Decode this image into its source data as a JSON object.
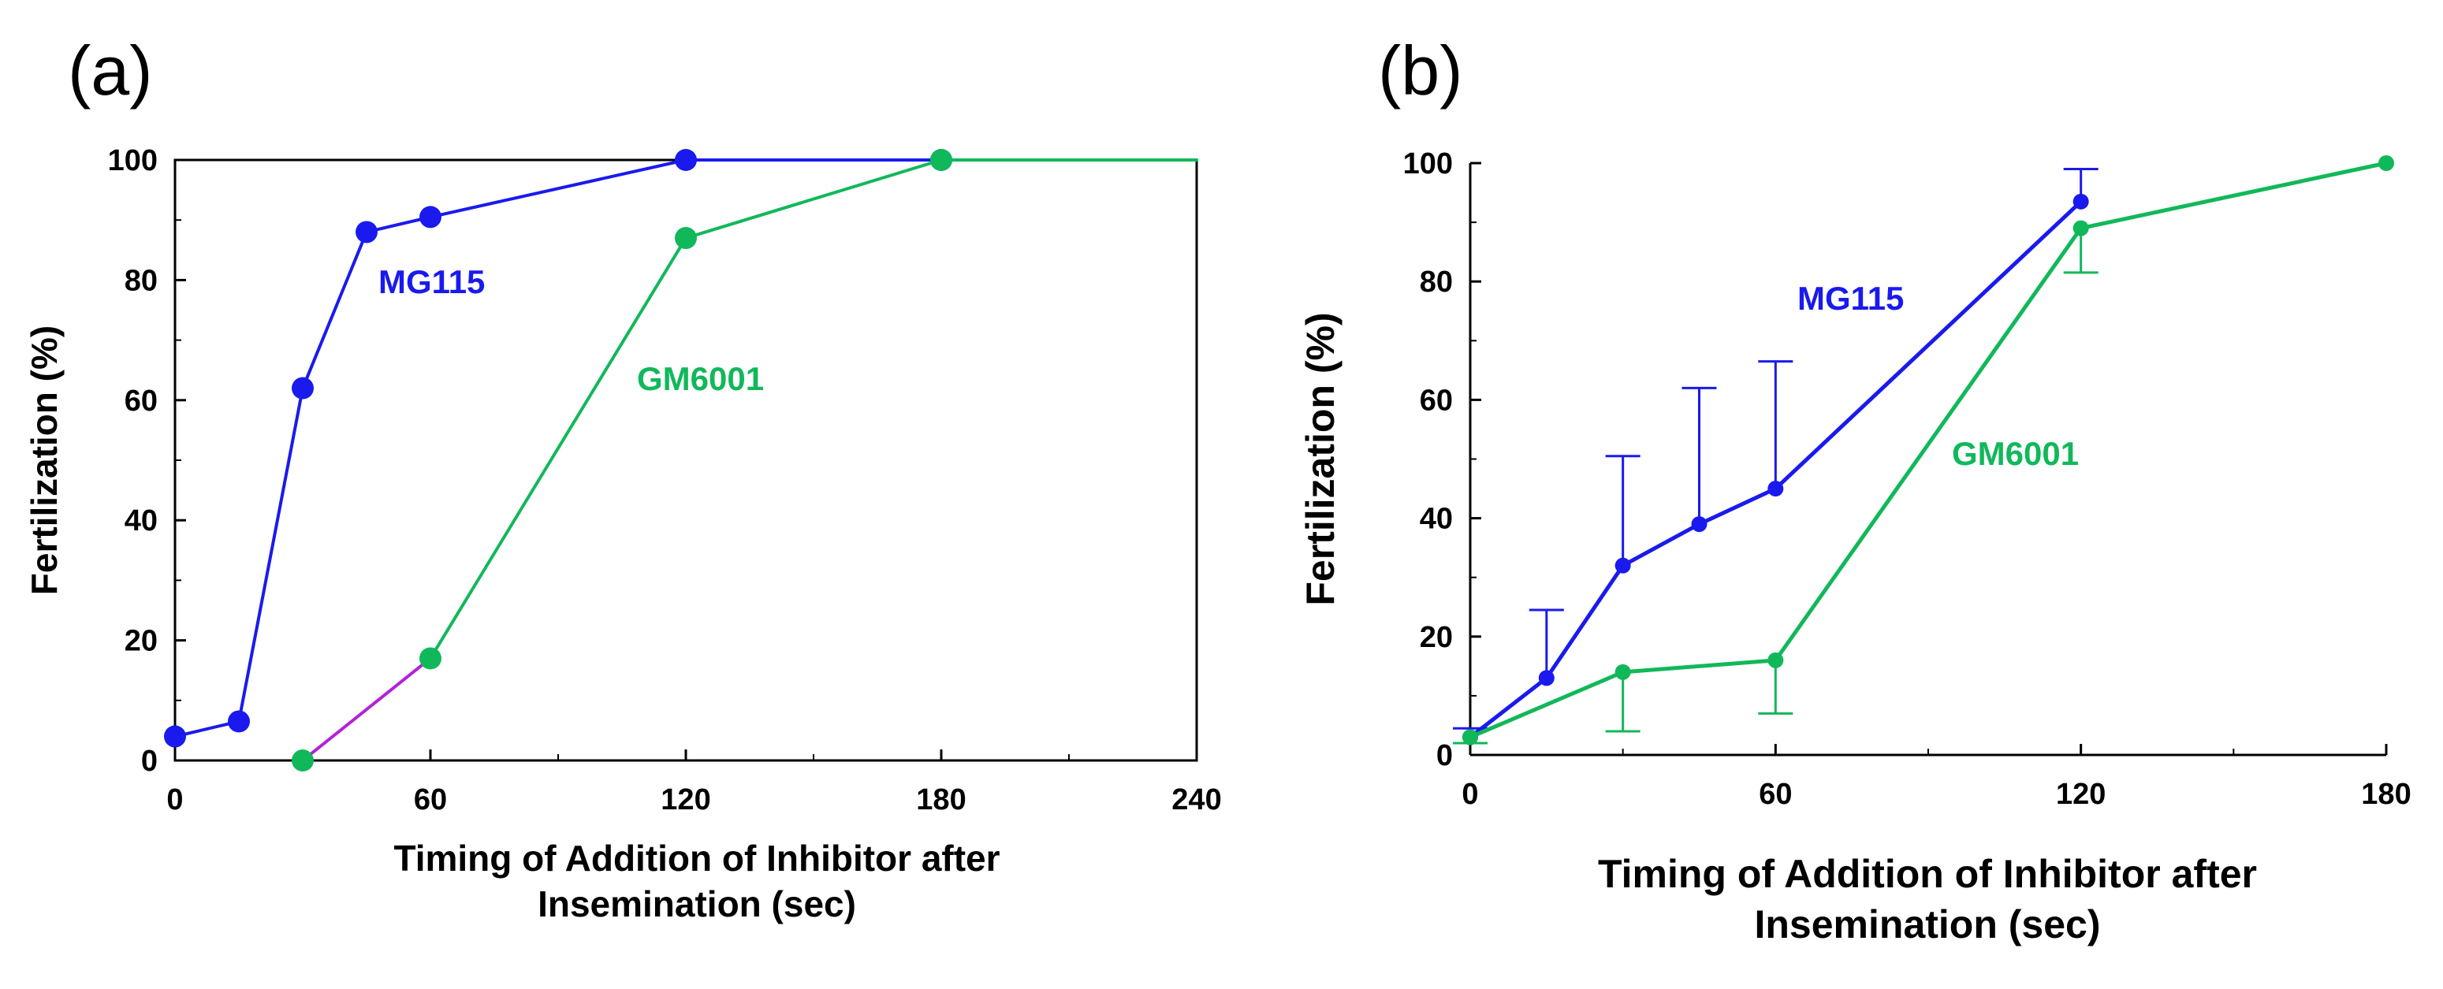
{
  "chart_data": [
    {
      "panel": "(a)",
      "type": "line",
      "xlabel": [
        "Timing of Addition of Inhibitor after",
        "Insemination (sec)"
      ],
      "ylabel": "Fertilization (%)",
      "xlim": [
        0,
        240
      ],
      "ylim": [
        0,
        100
      ],
      "xticks": [
        "0",
        "60",
        "120",
        "180",
        "240"
      ],
      "yticks": [
        "0",
        "20",
        "40",
        "60",
        "80",
        "100"
      ],
      "series": [
        {
          "name": "MG115",
          "color": "#1a1aee",
          "x": [
            0,
            15,
            30,
            45,
            60,
            120,
            180
          ],
          "y": [
            4,
            6.5,
            62,
            88,
            90.5,
            100,
            100
          ]
        },
        {
          "name": "GM6001",
          "color": "#11b85a",
          "x": [
            30,
            60,
            120,
            180,
            240
          ],
          "y": [
            0,
            17,
            87,
            100,
            100
          ],
          "first_segment_color": "#b420d8"
        }
      ]
    },
    {
      "panel": "(b)",
      "type": "line",
      "xlabel": [
        "Timing of Addition of Inhibitor after",
        "Insemination (sec)"
      ],
      "ylabel": "Fertilization (%)",
      "xlim": [
        0,
        180
      ],
      "ylim": [
        0,
        100
      ],
      "xticks": [
        "0",
        "60",
        "120",
        "180"
      ],
      "yticks": [
        "0",
        "20",
        "40",
        "60",
        "80",
        "100"
      ],
      "series": [
        {
          "name": "MG115",
          "color": "#1a1aee",
          "x": [
            0,
            15,
            30,
            45,
            60,
            120
          ],
          "y": [
            3,
            13,
            32,
            39,
            45,
            93.5
          ],
          "err_upper": [
            4.5,
            24.5,
            50.5,
            62,
            66.5,
            99
          ]
        },
        {
          "name": "GM6001",
          "color": "#11b85a",
          "x": [
            0,
            30,
            60,
            120,
            180
          ],
          "y": [
            3,
            14,
            16,
            89,
            100
          ],
          "err_lower": [
            2,
            4,
            7,
            81.5,
            100
          ]
        }
      ]
    }
  ]
}
